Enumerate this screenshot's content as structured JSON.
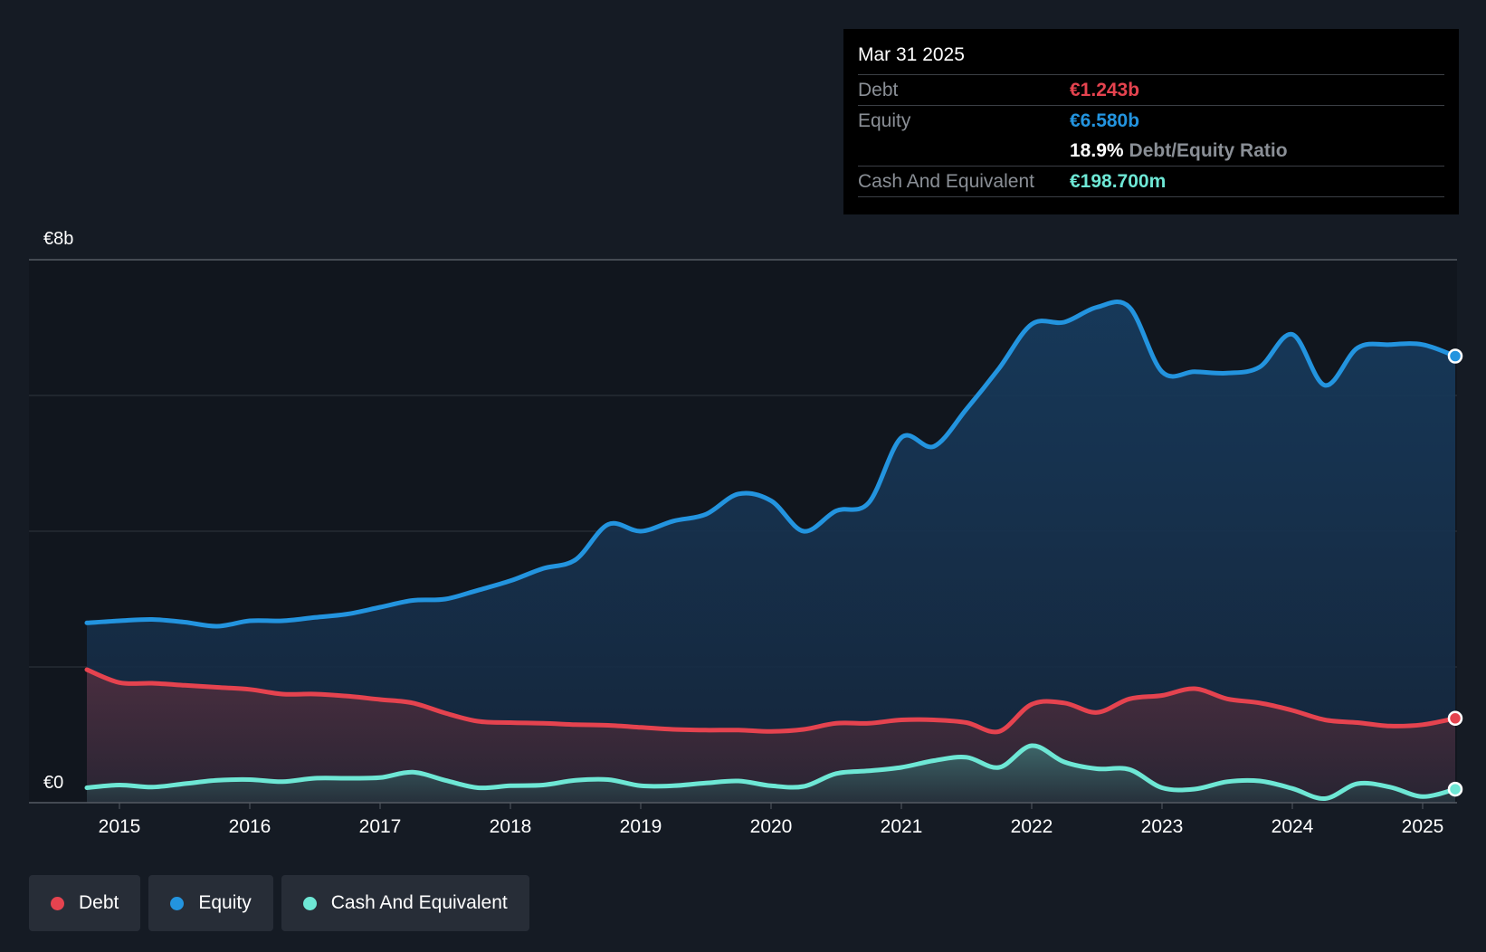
{
  "tooltip": {
    "date": "Mar 31 2025",
    "debt_label": "Debt",
    "debt_value": "€1.243b",
    "equity_label": "Equity",
    "equity_value": "€6.580b",
    "ratio_value": "18.9%",
    "ratio_label": "Debt/Equity Ratio",
    "cash_label": "Cash And Equivalent",
    "cash_value": "€198.700m"
  },
  "legend": {
    "debt": "Debt",
    "equity": "Equity",
    "cash": "Cash And Equivalent"
  },
  "colors": {
    "debt": "#e5434f",
    "equity": "#2394df",
    "cash": "#6ee7d5",
    "background": "#151b24"
  },
  "chart_data": {
    "type": "area",
    "title": "",
    "xlabel": "",
    "ylabel": "",
    "y_tick_labels": [
      "€0",
      "€8b"
    ],
    "ylim": [
      0,
      8
    ],
    "xlim": [
      2014.75,
      2025.25
    ],
    "x_ticks": [
      2015,
      2016,
      2017,
      2018,
      2019,
      2020,
      2021,
      2022,
      2023,
      2024,
      2025
    ],
    "x_tick_labels": [
      "2015",
      "2016",
      "2017",
      "2018",
      "2019",
      "2020",
      "2021",
      "2022",
      "2023",
      "2024",
      "2025"
    ],
    "gridlines": [
      0,
      2,
      4,
      6,
      8
    ],
    "series": [
      {
        "name": "Equity",
        "unit": "€b",
        "points": [
          [
            2014.75,
            2.65
          ],
          [
            2015.0,
            2.68
          ],
          [
            2015.25,
            2.7
          ],
          [
            2015.5,
            2.66
          ],
          [
            2015.75,
            2.6
          ],
          [
            2016.0,
            2.68
          ],
          [
            2016.25,
            2.68
          ],
          [
            2016.5,
            2.73
          ],
          [
            2016.75,
            2.78
          ],
          [
            2017.0,
            2.88
          ],
          [
            2017.25,
            2.98
          ],
          [
            2017.5,
            3.0
          ],
          [
            2017.75,
            3.13
          ],
          [
            2018.0,
            3.27
          ],
          [
            2018.25,
            3.45
          ],
          [
            2018.5,
            3.58
          ],
          [
            2018.75,
            4.1
          ],
          [
            2019.0,
            4.0
          ],
          [
            2019.25,
            4.15
          ],
          [
            2019.5,
            4.25
          ],
          [
            2019.75,
            4.55
          ],
          [
            2020.0,
            4.45
          ],
          [
            2020.25,
            4.0
          ],
          [
            2020.5,
            4.3
          ],
          [
            2020.75,
            4.42
          ],
          [
            2021.0,
            5.38
          ],
          [
            2021.25,
            5.25
          ],
          [
            2021.5,
            5.8
          ],
          [
            2021.75,
            6.4
          ],
          [
            2022.0,
            7.05
          ],
          [
            2022.25,
            7.08
          ],
          [
            2022.5,
            7.3
          ],
          [
            2022.75,
            7.3
          ],
          [
            2023.0,
            6.35
          ],
          [
            2023.25,
            6.35
          ],
          [
            2023.5,
            6.33
          ],
          [
            2023.75,
            6.42
          ],
          [
            2024.0,
            6.9
          ],
          [
            2024.25,
            6.15
          ],
          [
            2024.5,
            6.7
          ],
          [
            2024.75,
            6.75
          ],
          [
            2025.0,
            6.75
          ],
          [
            2025.25,
            6.58
          ]
        ]
      },
      {
        "name": "Debt",
        "unit": "€b",
        "points": [
          [
            2014.75,
            1.96
          ],
          [
            2015.0,
            1.77
          ],
          [
            2015.25,
            1.76
          ],
          [
            2015.5,
            1.73
          ],
          [
            2015.75,
            1.7
          ],
          [
            2016.0,
            1.67
          ],
          [
            2016.25,
            1.6
          ],
          [
            2016.5,
            1.6
          ],
          [
            2016.75,
            1.57
          ],
          [
            2017.0,
            1.52
          ],
          [
            2017.25,
            1.47
          ],
          [
            2017.5,
            1.32
          ],
          [
            2017.75,
            1.2
          ],
          [
            2018.0,
            1.18
          ],
          [
            2018.25,
            1.17
          ],
          [
            2018.5,
            1.15
          ],
          [
            2018.75,
            1.14
          ],
          [
            2019.0,
            1.11
          ],
          [
            2019.25,
            1.08
          ],
          [
            2019.5,
            1.07
          ],
          [
            2019.75,
            1.07
          ],
          [
            2020.0,
            1.05
          ],
          [
            2020.25,
            1.08
          ],
          [
            2020.5,
            1.17
          ],
          [
            2020.75,
            1.17
          ],
          [
            2021.0,
            1.22
          ],
          [
            2021.25,
            1.22
          ],
          [
            2021.5,
            1.18
          ],
          [
            2021.75,
            1.05
          ],
          [
            2022.0,
            1.45
          ],
          [
            2022.25,
            1.47
          ],
          [
            2022.5,
            1.33
          ],
          [
            2022.75,
            1.53
          ],
          [
            2023.0,
            1.58
          ],
          [
            2023.25,
            1.68
          ],
          [
            2023.5,
            1.53
          ],
          [
            2023.75,
            1.47
          ],
          [
            2024.0,
            1.36
          ],
          [
            2024.25,
            1.22
          ],
          [
            2024.5,
            1.18
          ],
          [
            2024.75,
            1.13
          ],
          [
            2025.0,
            1.15
          ],
          [
            2025.25,
            1.243
          ]
        ]
      },
      {
        "name": "Cash And Equivalent",
        "unit": "€b",
        "points": [
          [
            2014.75,
            0.22
          ],
          [
            2015.0,
            0.26
          ],
          [
            2015.25,
            0.23
          ],
          [
            2015.5,
            0.28
          ],
          [
            2015.75,
            0.33
          ],
          [
            2016.0,
            0.34
          ],
          [
            2016.25,
            0.31
          ],
          [
            2016.5,
            0.36
          ],
          [
            2016.75,
            0.36
          ],
          [
            2017.0,
            0.37
          ],
          [
            2017.25,
            0.45
          ],
          [
            2017.5,
            0.33
          ],
          [
            2017.75,
            0.22
          ],
          [
            2018.0,
            0.25
          ],
          [
            2018.25,
            0.26
          ],
          [
            2018.5,
            0.33
          ],
          [
            2018.75,
            0.34
          ],
          [
            2019.0,
            0.25
          ],
          [
            2019.25,
            0.25
          ],
          [
            2019.5,
            0.29
          ],
          [
            2019.75,
            0.32
          ],
          [
            2020.0,
            0.25
          ],
          [
            2020.25,
            0.24
          ],
          [
            2020.5,
            0.43
          ],
          [
            2020.75,
            0.47
          ],
          [
            2021.0,
            0.52
          ],
          [
            2021.25,
            0.62
          ],
          [
            2021.5,
            0.67
          ],
          [
            2021.75,
            0.52
          ],
          [
            2022.0,
            0.84
          ],
          [
            2022.25,
            0.6
          ],
          [
            2022.5,
            0.5
          ],
          [
            2022.75,
            0.49
          ],
          [
            2023.0,
            0.22
          ],
          [
            2023.25,
            0.2
          ],
          [
            2023.5,
            0.31
          ],
          [
            2023.75,
            0.32
          ],
          [
            2024.0,
            0.21
          ],
          [
            2024.25,
            0.06
          ],
          [
            2024.5,
            0.28
          ],
          [
            2024.75,
            0.23
          ],
          [
            2025.0,
            0.09
          ],
          [
            2025.25,
            0.1987
          ]
        ]
      }
    ],
    "highlight_x": 2025.25
  }
}
